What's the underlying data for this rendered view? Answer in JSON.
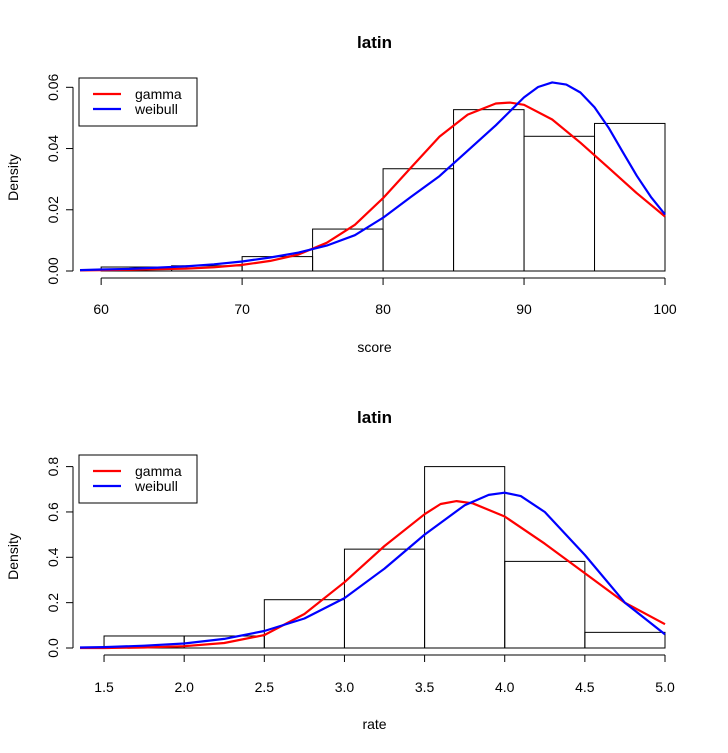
{
  "chart_data": [
    {
      "type": "histogram",
      "title": "latin",
      "xlabel": "score",
      "ylabel": "Density",
      "xlim": [
        58.5,
        100
      ],
      "ylim": [
        0,
        0.065
      ],
      "xticks": [
        "60",
        "70",
        "80",
        "90",
        "100"
      ],
      "xtick_values": [
        60,
        70,
        80,
        90,
        100
      ],
      "yticks": [
        "0.00",
        "0.02",
        "0.04",
        "0.06"
      ],
      "ytick_values": [
        0,
        0.02,
        0.04,
        0.06
      ],
      "bins": [
        {
          "from": 60,
          "to": 65,
          "density": 0.0013
        },
        {
          "from": 65,
          "to": 70,
          "density": 0.0017
        },
        {
          "from": 70,
          "to": 75,
          "density": 0.0047
        },
        {
          "from": 75,
          "to": 80,
          "density": 0.0137
        },
        {
          "from": 80,
          "to": 85,
          "density": 0.0334
        },
        {
          "from": 85,
          "to": 90,
          "density": 0.0527
        },
        {
          "from": 90,
          "to": 95,
          "density": 0.044
        },
        {
          "from": 95,
          "to": 100,
          "density": 0.0482
        }
      ],
      "series": [
        {
          "name": "gamma",
          "color": "#ff0000",
          "type": "line",
          "x": [
            58.5,
            60,
            62,
            64,
            66,
            68,
            70,
            72,
            74,
            76,
            78,
            80,
            82,
            84,
            86,
            88,
            89,
            90,
            92,
            94,
            96,
            98,
            100
          ],
          "y": [
            0.0002,
            0.0003,
            0.0004,
            0.0006,
            0.0008,
            0.0012,
            0.002,
            0.0033,
            0.0054,
            0.0092,
            0.0151,
            0.0238,
            0.0339,
            0.0439,
            0.0511,
            0.0547,
            0.055,
            0.0543,
            0.0495,
            0.0419,
            0.0337,
            0.0254,
            0.0178
          ]
        },
        {
          "name": "weibull",
          "color": "#0000ff",
          "type": "line",
          "x": [
            58.5,
            60,
            62,
            64,
            66,
            68,
            70,
            72,
            74,
            76,
            78,
            80,
            82,
            84,
            86,
            88,
            90,
            91,
            92,
            93,
            94,
            95,
            96,
            97,
            98,
            99,
            100
          ],
          "y": [
            0.0003,
            0.0005,
            0.0007,
            0.0011,
            0.0015,
            0.0022,
            0.0031,
            0.0044,
            0.006,
            0.0083,
            0.0117,
            0.0174,
            0.0243,
            0.031,
            0.0393,
            0.0476,
            0.0567,
            0.0601,
            0.0616,
            0.0609,
            0.0583,
            0.0535,
            0.0468,
            0.0389,
            0.0311,
            0.0242,
            0.0185
          ]
        }
      ],
      "legend": {
        "position": "top-left",
        "entries": [
          "gamma",
          "weibull"
        ]
      }
    },
    {
      "type": "histogram",
      "title": "latin",
      "xlabel": "rate",
      "ylabel": "Density",
      "xlim": [
        1.35,
        5.0
      ],
      "ylim": [
        0,
        0.86
      ],
      "xticks": [
        "1.5",
        "2.0",
        "2.5",
        "3.0",
        "3.5",
        "4.0",
        "4.5",
        "5.0"
      ],
      "xtick_values": [
        1.5,
        2.0,
        2.5,
        3.0,
        3.5,
        4.0,
        4.5,
        5.0
      ],
      "yticks": [
        "0.0",
        "0.2",
        "0.4",
        "0.6",
        "0.8"
      ],
      "ytick_values": [
        0,
        0.2,
        0.4,
        0.6,
        0.8
      ],
      "bins": [
        {
          "from": 1.5,
          "to": 2.0,
          "density": 0.053
        },
        {
          "from": 2.0,
          "to": 2.5,
          "density": 0.053
        },
        {
          "from": 2.5,
          "to": 3.0,
          "density": 0.213
        },
        {
          "from": 3.0,
          "to": 3.5,
          "density": 0.436
        },
        {
          "from": 3.5,
          "to": 4.0,
          "density": 0.8
        },
        {
          "from": 4.0,
          "to": 4.5,
          "density": 0.382
        },
        {
          "from": 4.5,
          "to": 5.0,
          "density": 0.069
        }
      ],
      "series": [
        {
          "name": "gamma",
          "color": "#ff0000",
          "type": "line",
          "x": [
            1.35,
            1.5,
            1.75,
            2.0,
            2.25,
            2.5,
            2.75,
            3.0,
            3.25,
            3.5,
            3.6,
            3.7,
            3.8,
            4.0,
            4.25,
            4.5,
            4.75,
            5.0
          ],
          "y": [
            0.0,
            0.0,
            0.002,
            0.008,
            0.022,
            0.057,
            0.15,
            0.29,
            0.45,
            0.59,
            0.635,
            0.648,
            0.638,
            0.58,
            0.46,
            0.33,
            0.2,
            0.105
          ]
        },
        {
          "name": "weibull",
          "color": "#0000ff",
          "type": "line",
          "x": [
            1.35,
            1.5,
            1.75,
            2.0,
            2.25,
            2.5,
            2.75,
            3.0,
            3.25,
            3.5,
            3.75,
            3.9,
            4.0,
            4.1,
            4.25,
            4.5,
            4.75,
            5.0
          ],
          "y": [
            0.002,
            0.004,
            0.01,
            0.02,
            0.04,
            0.075,
            0.13,
            0.22,
            0.35,
            0.5,
            0.63,
            0.675,
            0.685,
            0.67,
            0.6,
            0.41,
            0.2,
            0.06
          ]
        }
      ],
      "legend": {
        "position": "top-left",
        "entries": [
          "gamma",
          "weibull"
        ]
      }
    }
  ]
}
